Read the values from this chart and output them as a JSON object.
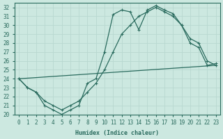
{
  "xlabel": "Humidex (Indice chaleur)",
  "bg_color": "#cce8e0",
  "line_color": "#2a6b5e",
  "grid_color": "#b8d8d0",
  "xlim": [
    -0.5,
    23.5
  ],
  "ylim": [
    20,
    32.5
  ],
  "xticks": [
    0,
    1,
    2,
    3,
    4,
    5,
    6,
    7,
    8,
    9,
    10,
    11,
    12,
    13,
    14,
    15,
    16,
    17,
    18,
    19,
    20,
    21,
    22,
    23
  ],
  "yticks": [
    20,
    21,
    22,
    23,
    24,
    25,
    26,
    27,
    28,
    29,
    30,
    31,
    32
  ],
  "series1_x": [
    0,
    1,
    2,
    3,
    4,
    5,
    6,
    7,
    8,
    9,
    10,
    11,
    12,
    13,
    14,
    15,
    16,
    17,
    18,
    19,
    20,
    21,
    22,
    23
  ],
  "series1_y": [
    24,
    23,
    22.5,
    21,
    20.5,
    20,
    20.5,
    21,
    23.5,
    24,
    27,
    31.2,
    31.7,
    31.5,
    29.5,
    31.7,
    32.2,
    31.7,
    31.3,
    30,
    28,
    27.5,
    25.5,
    25.7
  ],
  "series2_x": [
    0,
    1,
    2,
    3,
    4,
    5,
    6,
    7,
    8,
    9,
    10,
    11,
    12,
    13,
    14,
    15,
    16,
    17,
    18,
    19,
    20,
    21,
    22,
    23
  ],
  "series2_y": [
    24,
    23,
    22.5,
    21.5,
    21,
    20.5,
    21,
    21.5,
    22.5,
    23.5,
    25,
    27,
    29,
    30,
    31,
    31.5,
    32,
    31.5,
    31,
    30,
    28.5,
    28,
    26,
    25.5
  ],
  "series3_x": [
    0,
    23
  ],
  "series3_y": [
    24,
    25.5
  ]
}
